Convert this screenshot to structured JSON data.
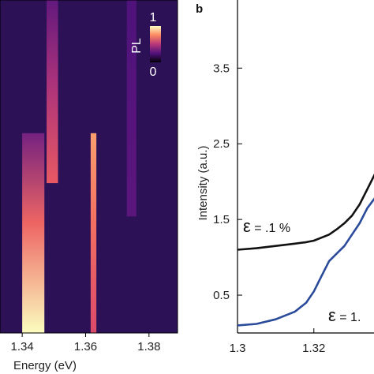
{
  "chart_data": [
    {
      "type": "heatmap",
      "panel": "",
      "xlabel": "Energy (eV)",
      "x_ticks": [
        {
          "value": 1.34,
          "label": "1.34"
        },
        {
          "value": 1.36,
          "label": "1.36"
        },
        {
          "value": 1.38,
          "label": "1.38"
        }
      ],
      "xlim": [
        1.333,
        1.389
      ],
      "ylim": [
        0,
        1
      ],
      "colormap": "magma",
      "colorbar": {
        "label": "PL",
        "min_label": "0",
        "max_label": "1",
        "placement": "top-right"
      },
      "bands": [
        {
          "center": 1.3435,
          "width": 0.0035,
          "intensity": 1.0,
          "y_start": 0.0,
          "y_end": 0.6,
          "top_intensity": 0.35
        },
        {
          "center": 1.3495,
          "width": 0.0018,
          "intensity": 0.65,
          "y_start": 0.45,
          "y_end": 1.0,
          "top_intensity": 0.3
        },
        {
          "center": 1.3625,
          "width": 0.0009,
          "intensity": 0.6,
          "y_start": 0.0,
          "y_end": 0.6,
          "top_intensity": 0.8
        },
        {
          "center": 1.3745,
          "width": 0.0015,
          "intensity": 0.28,
          "y_start": 0.35,
          "y_end": 1.0,
          "top_intensity": 0.25
        }
      ]
    },
    {
      "type": "line",
      "panel": "b",
      "xlabel": "",
      "ylabel": "Intensity (a.u.)",
      "xlim": [
        1.3,
        1.337
      ],
      "ylim": [
        0.0,
        4.4
      ],
      "x_ticks": [
        {
          "value": 1.3,
          "label": "1.3"
        },
        {
          "value": 1.32,
          "label": "1.32"
        }
      ],
      "y_ticks": [
        {
          "value": 0.5,
          "label": "0.5"
        },
        {
          "value": 1.5,
          "label": "1.5"
        },
        {
          "value": 2.5,
          "label": "2.5"
        },
        {
          "value": 3.5,
          "label": "3.5"
        }
      ],
      "series": [
        {
          "label": "ε = .1 %",
          "color": "#111111",
          "x": [
            1.3,
            1.305,
            1.31,
            1.315,
            1.318,
            1.32,
            1.322,
            1.324,
            1.326,
            1.328,
            1.33,
            1.332,
            1.334,
            1.3355,
            1.337
          ],
          "y": [
            1.1,
            1.12,
            1.15,
            1.18,
            1.2,
            1.22,
            1.26,
            1.3,
            1.37,
            1.45,
            1.55,
            1.7,
            1.9,
            2.05,
            2.2
          ]
        },
        {
          "label": "ε = 1.",
          "color": "#2a4a9a",
          "x": [
            1.3,
            1.305,
            1.31,
            1.315,
            1.318,
            1.32,
            1.322,
            1.324,
            1.326,
            1.328,
            1.33,
            1.332,
            1.334,
            1.3355,
            1.337
          ],
          "y": [
            0.1,
            0.12,
            0.18,
            0.28,
            0.4,
            0.55,
            0.75,
            0.95,
            1.05,
            1.15,
            1.3,
            1.45,
            1.65,
            1.75,
            1.85
          ]
        }
      ],
      "annotations": [
        {
          "symbol": "ε",
          "text": " = .1 %"
        },
        {
          "symbol": "ε",
          "text": " = 1."
        }
      ]
    }
  ]
}
